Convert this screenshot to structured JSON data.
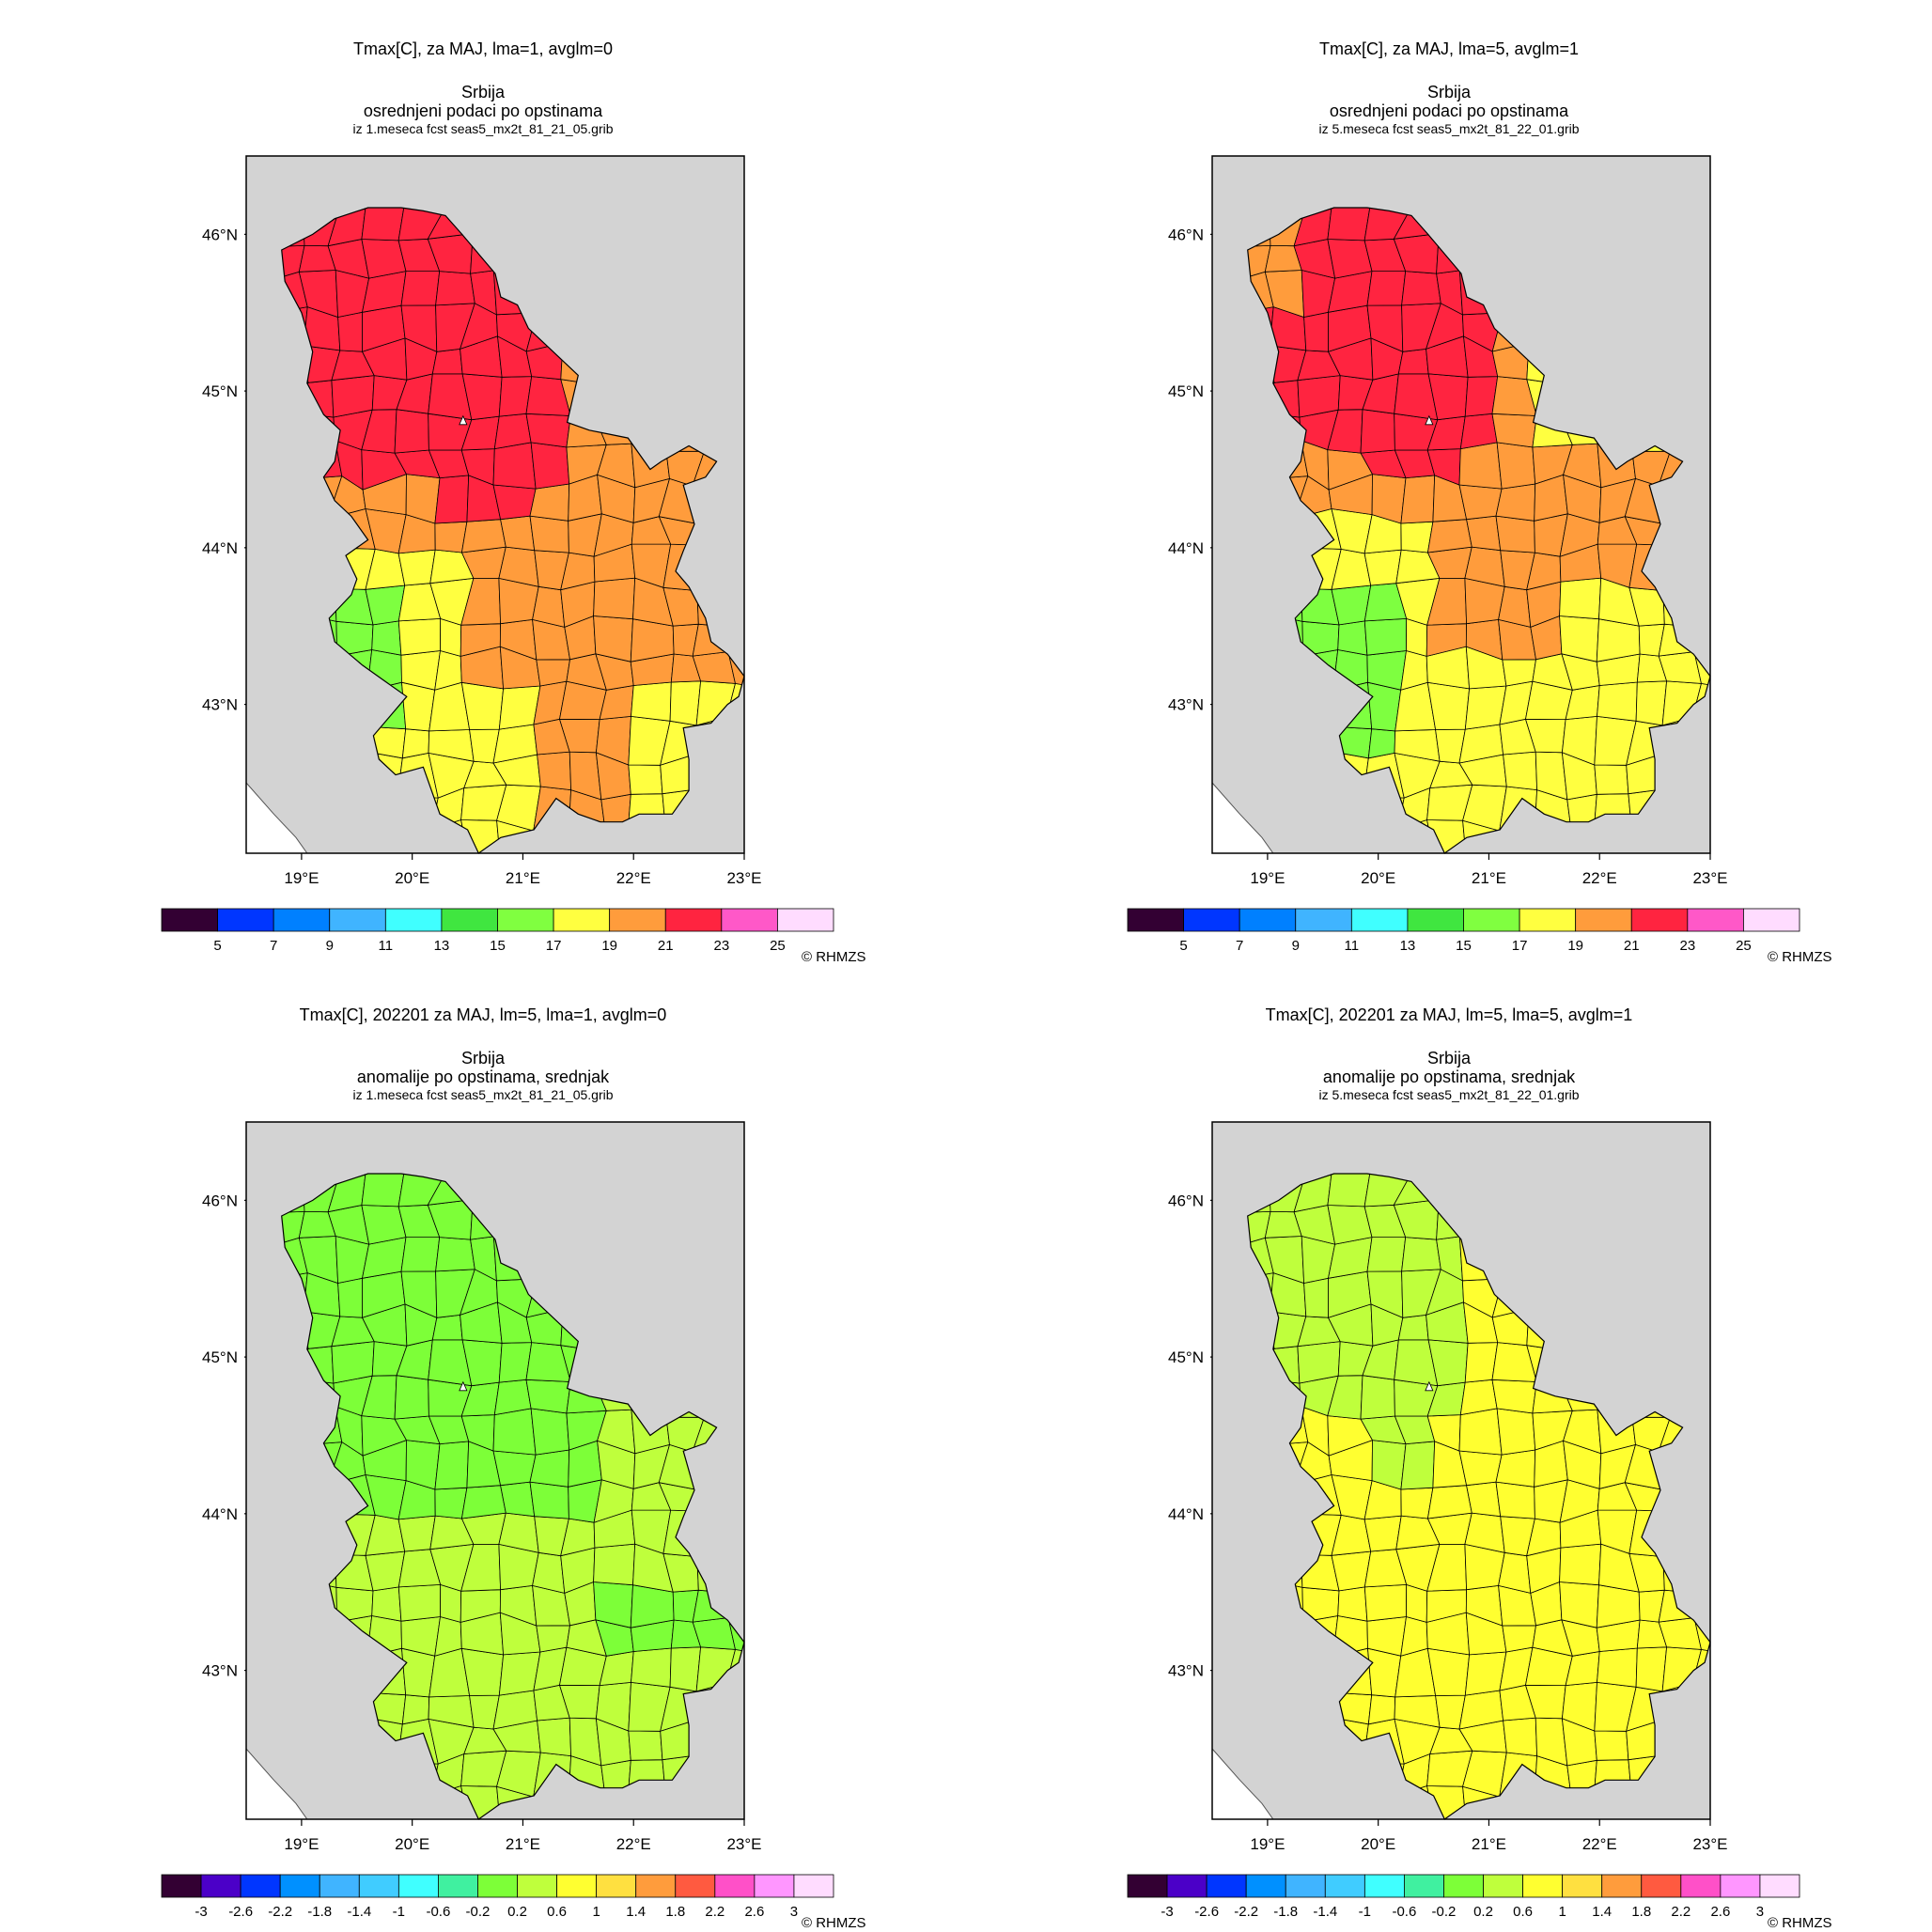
{
  "colors": {
    "sea": "#d3d3d3",
    "land_outside": "#ffffff",
    "border": "#000000",
    "t_yellow": "#ffff40",
    "t_orange": "#ff9c3c",
    "t_red": "#ff2440",
    "t_green": "#7eff40",
    "a_green": "#7dff38",
    "a_lime": "#bfff3c",
    "a_yellow": "#ffff30"
  },
  "lon_ticks": [
    "19°E",
    "20°E",
    "21°E",
    "22°E",
    "23°E"
  ],
  "lat_ticks": [
    "46°N",
    "45°N",
    "44°N",
    "43°N"
  ],
  "panels": [
    {
      "title": "Tmax[C], za MAJ, lma=1, avglm=0",
      "region": "Srbija",
      "subtitle": "osrednjeni podaci po opstinama",
      "source": "iz 1.meseca fcst seas5_mx2t_81_21_05.grib",
      "copyright": "© RHMZS",
      "legend_colors": [
        "#330033",
        "#0036ff",
        "#0080ff",
        "#40b4ff",
        "#40ffff",
        "#40e640",
        "#80ff40",
        "#ffff40",
        "#ff9c3c",
        "#ff2440",
        "#ff58c8",
        "#ffdcff"
      ],
      "legend_labels": [
        "5",
        "7",
        "9",
        "11",
        "13",
        "15",
        "17",
        "19",
        "21",
        "23",
        "25"
      ]
    },
    {
      "title": "Tmax[C], za MAJ, lma=5, avglm=1",
      "region": "Srbija",
      "subtitle": "osrednjeni podaci po opstinama",
      "source": "iz 5.meseca fcst seas5_mx2t_81_22_01.grib",
      "copyright": "© RHMZS",
      "legend_colors": [
        "#330033",
        "#0036ff",
        "#0080ff",
        "#40b4ff",
        "#40ffff",
        "#40e640",
        "#80ff40",
        "#ffff40",
        "#ff9c3c",
        "#ff2440",
        "#ff58c8",
        "#ffdcff"
      ],
      "legend_labels": [
        "5",
        "7",
        "9",
        "11",
        "13",
        "15",
        "17",
        "19",
        "21",
        "23",
        "25"
      ]
    },
    {
      "title": "Tmax[C], 202201 za MAJ, lm=5, lma=1, avglm=0",
      "region": "Srbija",
      "subtitle": "anomalije po opstinama, srednjak",
      "source": "iz 1.meseca fcst seas5_mx2t_81_21_05.grib",
      "copyright": "© RHMZS",
      "legend_colors": [
        "#330033",
        "#4b00c8",
        "#0036ff",
        "#0090ff",
        "#40b4ff",
        "#40ccff",
        "#40ffff",
        "#40f0a0",
        "#7dff38",
        "#bfff3c",
        "#ffff30",
        "#ffe040",
        "#ff9c3c",
        "#ff5a40",
        "#ff50c8",
        "#ff96ff",
        "#ffdcff"
      ],
      "legend_labels": [
        "-3",
        "-2.6",
        "-2.2",
        "-1.8",
        "-1.4",
        "-1",
        "-0.6",
        "-0.2",
        "0.2",
        "0.6",
        "1",
        "1.4",
        "1.8",
        "2.2",
        "2.6",
        "3"
      ]
    },
    {
      "title": "Tmax[C], 202201 za MAJ, lm=5, lma=5, avglm=1",
      "region": "Srbija",
      "subtitle": "anomalije po opstinama, srednjak",
      "source": "iz 5.meseca fcst seas5_mx2t_81_22_01.grib",
      "copyright": "© RHMZS",
      "legend_colors": [
        "#330033",
        "#4b00c8",
        "#0036ff",
        "#0090ff",
        "#40b4ff",
        "#40ccff",
        "#40ffff",
        "#40f0a0",
        "#7dff38",
        "#bfff3c",
        "#ffff30",
        "#ffe040",
        "#ff9c3c",
        "#ff5a40",
        "#ff50c8",
        "#ff96ff",
        "#ffdcff"
      ],
      "legend_labels": [
        "-3",
        "-2.6",
        "-2.2",
        "-1.8",
        "-1.4",
        "-1",
        "-0.6",
        "-0.2",
        "0.2",
        "0.6",
        "1",
        "1.4",
        "1.8",
        "2.2",
        "2.6",
        "3"
      ]
    }
  ]
}
